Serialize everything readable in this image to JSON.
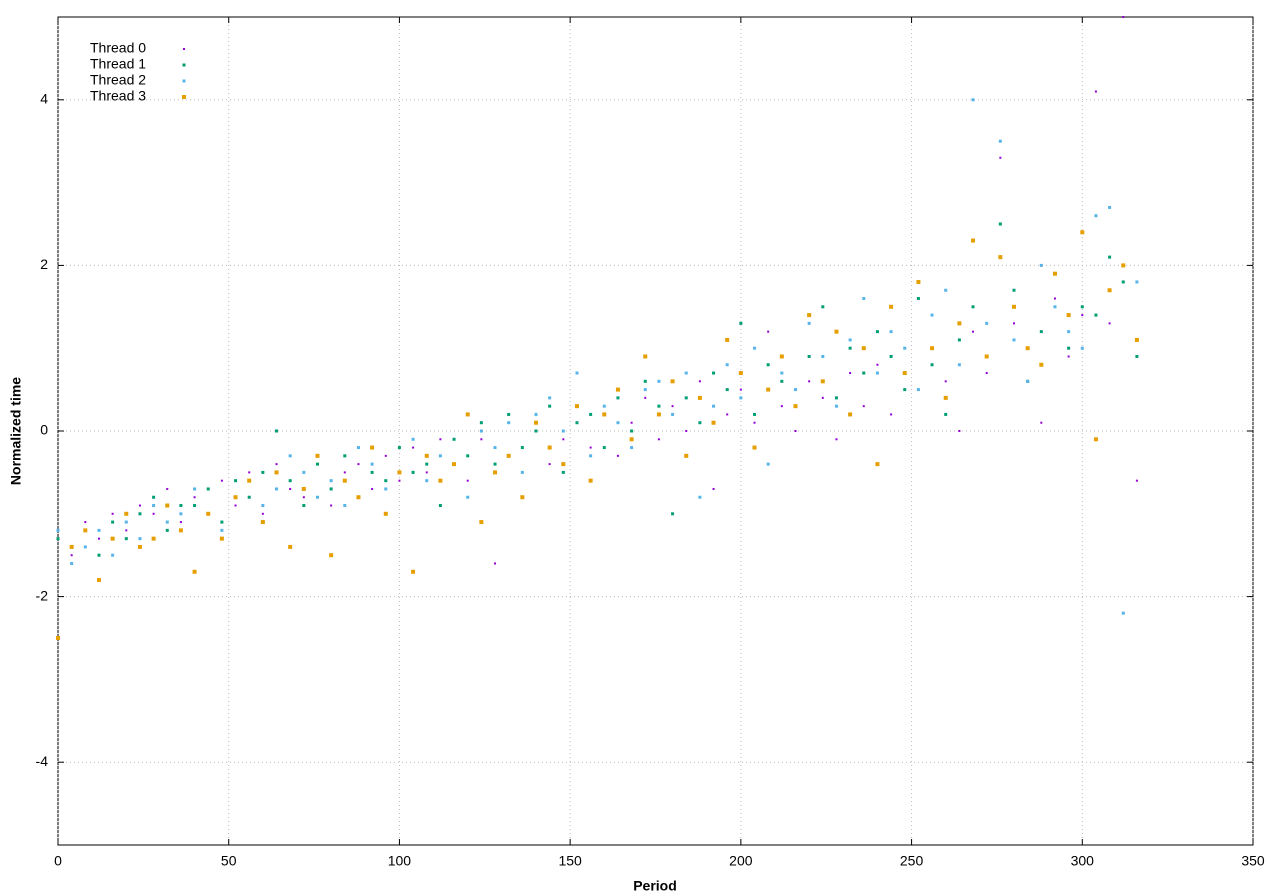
{
  "chart_data": {
    "type": "scatter",
    "xlabel": "Period",
    "ylabel": "Normalized time",
    "xlim": [
      0,
      350
    ],
    "ylim": [
      -5,
      5
    ],
    "xticks": [
      0,
      50,
      100,
      150,
      200,
      250,
      300,
      350
    ],
    "yticks": [
      -4,
      -2,
      0,
      2,
      4
    ],
    "grid": true,
    "legend": "top-left",
    "x": [
      0,
      4,
      8,
      12,
      16,
      20,
      24,
      28,
      32,
      36,
      40,
      44,
      48,
      52,
      56,
      60,
      64,
      68,
      72,
      76,
      80,
      84,
      88,
      92,
      96,
      100,
      104,
      108,
      112,
      116,
      120,
      124,
      128,
      132,
      136,
      140,
      144,
      148,
      152,
      156,
      160,
      164,
      168,
      172,
      176,
      180,
      184,
      188,
      192,
      196,
      200,
      204,
      208,
      212,
      216,
      220,
      224,
      228,
      232,
      236,
      240,
      244,
      248,
      252,
      256,
      260,
      264,
      268,
      272,
      276,
      280,
      284,
      288,
      292,
      296,
      300,
      304,
      308,
      312,
      316
    ],
    "series": [
      {
        "name": "Thread 0",
        "color": "#9400d3",
        "values": [
          -1.2,
          -1.5,
          -1.1,
          -1.3,
          -1.0,
          -1.2,
          -0.9,
          -1.0,
          -0.7,
          -1.1,
          -0.8,
          -1.0,
          -0.6,
          -0.9,
          -0.5,
          -1.0,
          -0.4,
          -0.7,
          -0.8,
          -0.3,
          -0.9,
          -0.5,
          -0.4,
          -0.7,
          -0.3,
          -0.6,
          -0.2,
          -0.5,
          -0.1,
          -0.4,
          -0.6,
          -0.1,
          -1.6,
          -0.3,
          -0.2,
          0.1,
          -0.4,
          -0.1,
          0.3,
          -0.2,
          0.2,
          -0.3,
          0.1,
          0.4,
          -0.1,
          0.3,
          0.0,
          0.6,
          -0.7,
          0.2,
          0.5,
          0.1,
          1.2,
          0.3,
          0.0,
          0.6,
          0.4,
          -0.1,
          0.7,
          0.3,
          0.8,
          0.2,
          1.0,
          0.5,
          1.4,
          0.6,
          0.0,
          1.2,
          0.7,
          3.3,
          1.3,
          1.0,
          0.1,
          1.6,
          0.9,
          1.4,
          4.1,
          1.3,
          5.0,
          -0.6
        ]
      },
      {
        "name": "Thread 1",
        "color": "#009e73",
        "values": [
          -1.3,
          -1.4,
          -1.2,
          -1.5,
          -1.1,
          -1.3,
          -1.0,
          -0.8,
          -1.2,
          -0.9,
          -0.9,
          -0.7,
          -1.1,
          -0.6,
          -0.8,
          -0.5,
          0.0,
          -0.6,
          -0.9,
          -0.4,
          -0.7,
          -0.3,
          -0.8,
          -0.5,
          -0.6,
          -0.2,
          -0.5,
          -0.4,
          -0.9,
          -0.1,
          -0.3,
          0.1,
          -0.4,
          0.2,
          -0.2,
          0.0,
          0.3,
          -0.5,
          0.1,
          0.2,
          -0.2,
          0.4,
          0.0,
          0.6,
          0.3,
          -1.0,
          0.4,
          0.1,
          0.7,
          0.5,
          1.3,
          0.2,
          0.8,
          0.6,
          0.3,
          0.9,
          1.5,
          0.4,
          1.0,
          0.7,
          1.2,
          0.9,
          0.5,
          1.6,
          0.8,
          0.2,
          1.1,
          1.5,
          0.9,
          2.5,
          1.7,
          0.6,
          1.2,
          1.9,
          1.0,
          1.5,
          1.4,
          2.1,
          1.8,
          0.9
        ]
      },
      {
        "name": "Thread 2",
        "color": "#56b4e9",
        "values": [
          -1.2,
          -1.6,
          -1.4,
          -1.2,
          -1.5,
          -1.1,
          -1.3,
          -0.9,
          -1.1,
          -1.0,
          -0.7,
          -1.0,
          -1.2,
          -0.8,
          -0.6,
          -0.9,
          -0.7,
          -0.3,
          -0.5,
          -0.8,
          -0.6,
          -0.9,
          -0.2,
          -0.4,
          -0.7,
          -0.5,
          -0.1,
          -0.6,
          -0.3,
          -0.4,
          -0.8,
          0.0,
          -0.2,
          0.1,
          -0.5,
          0.2,
          0.4,
          0.0,
          0.7,
          -0.3,
          0.3,
          0.1,
          -0.2,
          0.5,
          0.6,
          0.2,
          0.7,
          -0.8,
          0.3,
          0.8,
          0.4,
          1.0,
          -0.4,
          0.7,
          0.5,
          1.3,
          0.9,
          0.3,
          1.1,
          1.6,
          0.7,
          1.2,
          1.0,
          0.5,
          1.4,
          1.7,
          0.8,
          4.0,
          1.3,
          3.5,
          1.1,
          0.6,
          2.0,
          1.5,
          1.2,
          1.0,
          2.6,
          2.7,
          -2.2,
          1.8
        ]
      },
      {
        "name": "Thread 3",
        "color": "#e69f00",
        "values": [
          -2.5,
          -1.4,
          -1.2,
          -1.8,
          -1.3,
          -1.0,
          -1.4,
          -1.3,
          -0.9,
          -1.2,
          -1.7,
          -1.0,
          -1.3,
          -0.8,
          -0.6,
          -1.1,
          -0.5,
          -1.4,
          -0.7,
          -0.3,
          -1.5,
          -0.6,
          -0.8,
          -0.2,
          -1.0,
          -0.5,
          -1.7,
          -0.3,
          -0.6,
          -0.4,
          0.2,
          -1.1,
          -0.5,
          -0.3,
          -0.8,
          0.1,
          -0.2,
          -0.4,
          0.3,
          -0.6,
          0.2,
          0.5,
          -0.1,
          0.9,
          0.2,
          0.6,
          -0.3,
          0.4,
          0.1,
          1.1,
          0.7,
          -0.2,
          0.5,
          0.9,
          0.3,
          1.4,
          0.6,
          1.2,
          0.2,
          1.0,
          -0.4,
          1.5,
          0.7,
          1.8,
          1.0,
          0.4,
          1.3,
          2.3,
          0.9,
          2.1,
          1.5,
          1.0,
          0.8,
          1.9,
          1.4,
          2.4,
          -0.1,
          1.7,
          2.0,
          1.1
        ]
      }
    ]
  }
}
